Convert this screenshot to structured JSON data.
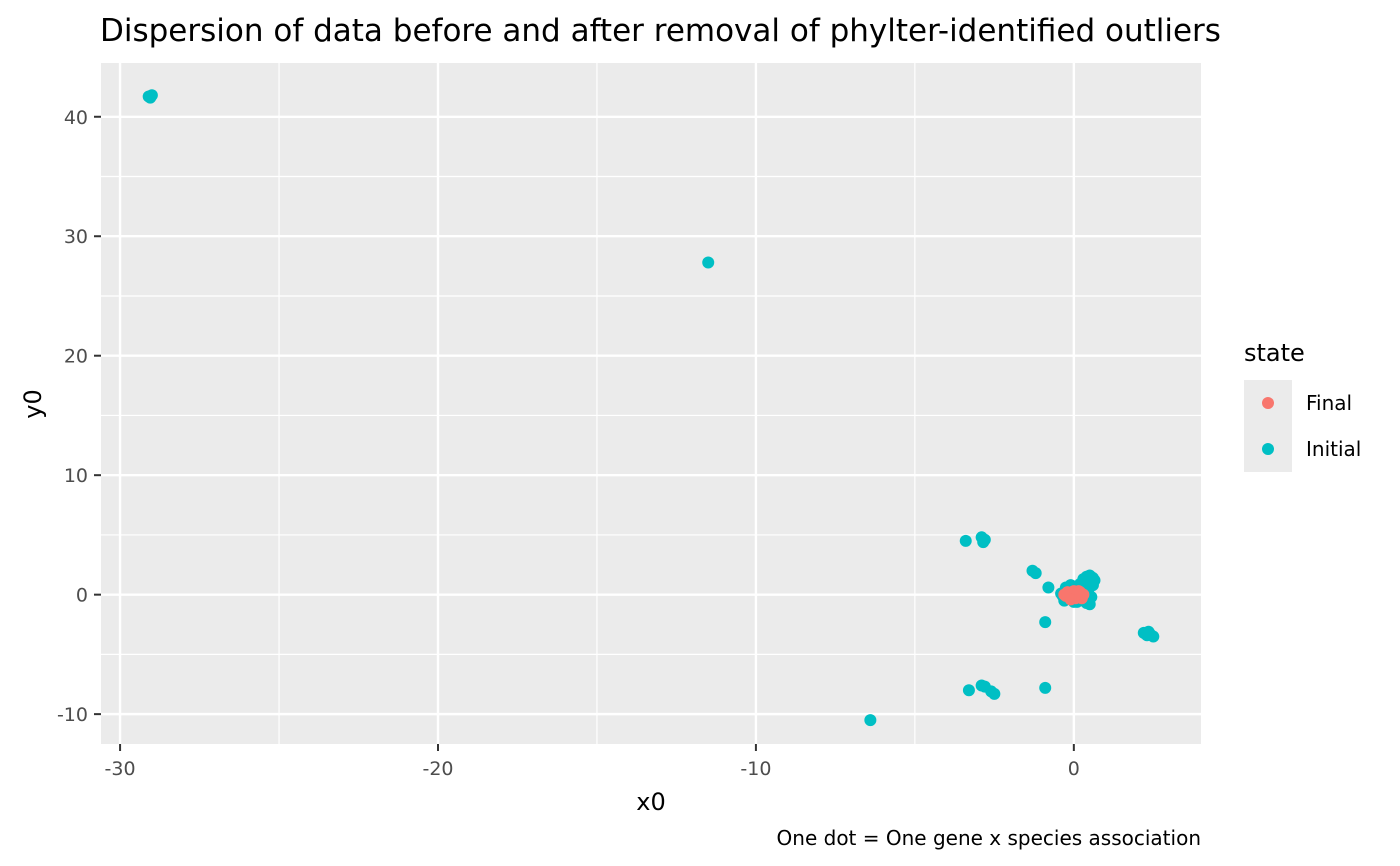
{
  "chart_data": {
    "type": "scatter",
    "title": "Dispersion of data before and after removal of phylter-identified outliers",
    "xlabel": "x0",
    "ylabel": "y0",
    "caption": "One dot = One gene x species association",
    "xlim": [
      -30.6,
      4.0
    ],
    "ylim": [
      -12.5,
      44.5
    ],
    "x_ticks": [
      -30,
      -20,
      -10,
      0
    ],
    "x_tick_labels": [
      "-30",
      "-20",
      "-10",
      "0"
    ],
    "y_ticks": [
      -10,
      0,
      10,
      20,
      30,
      40
    ],
    "y_tick_labels": [
      "-10",
      "0",
      "10",
      "20",
      "30",
      "40"
    ],
    "grid": true,
    "legend": {
      "title": "state",
      "position": "right",
      "entries": [
        {
          "name": "Final",
          "color": "#F8766D"
        },
        {
          "name": "Initial",
          "color": "#00BFC4"
        }
      ]
    },
    "series": [
      {
        "name": "Initial",
        "color": "#00BFC4",
        "x": [
          -29.1,
          -29.0,
          -29.05,
          -11.5,
          -6.4,
          -3.4,
          -2.9,
          -2.8,
          -2.85,
          -1.3,
          -1.2,
          -0.8,
          -0.9,
          -3.3,
          -2.9,
          -2.8,
          -2.6,
          -2.5,
          -0.9,
          2.2,
          2.3,
          2.4,
          2.5,
          2.35,
          -0.4,
          -0.3,
          -0.2,
          -0.1,
          0.0,
          0.1,
          0.2,
          0.3,
          0.4,
          0.5,
          0.6,
          0.65,
          0.5,
          0.4,
          0.3,
          0.2,
          0.1,
          0.0,
          -0.1,
          -0.2,
          -0.3,
          -0.35,
          0.45,
          0.55,
          0.3,
          0.15,
          -0.05,
          -0.25,
          0.35,
          0.6
        ],
        "y": [
          41.7,
          41.8,
          41.6,
          27.8,
          -10.5,
          4.5,
          4.8,
          4.6,
          4.4,
          2.0,
          1.8,
          0.6,
          -2.3,
          -8.0,
          -7.6,
          -7.7,
          -8.1,
          -8.3,
          -7.8,
          -3.2,
          -3.4,
          -3.3,
          -3.5,
          -3.1,
          0.1,
          -0.5,
          0.6,
          0.8,
          -0.6,
          0.7,
          -0.4,
          1.3,
          1.5,
          1.6,
          1.4,
          1.2,
          -0.8,
          -0.7,
          -0.5,
          0.9,
          -0.6,
          0.5,
          0.4,
          -0.3,
          0.2,
          -0.1,
          0.3,
          -0.2,
          0.0,
          0.4,
          -0.4,
          0.6,
          1.0,
          0.8
        ]
      },
      {
        "name": "Final",
        "color": "#F8766D",
        "x": [
          -0.3,
          -0.2,
          -0.1,
          0.0,
          0.1,
          0.2,
          0.25,
          -0.25,
          -0.15,
          0.05,
          0.15,
          -0.05,
          0.2,
          -0.2,
          0.0,
          0.1,
          -0.1,
          0.3
        ],
        "y": [
          0.0,
          0.2,
          -0.2,
          0.3,
          -0.1,
          0.1,
          -0.3,
          -0.1,
          0.1,
          -0.3,
          0.3,
          0.0,
          0.2,
          0.2,
          -0.2,
          0.0,
          -0.4,
          0.0
        ]
      }
    ]
  }
}
